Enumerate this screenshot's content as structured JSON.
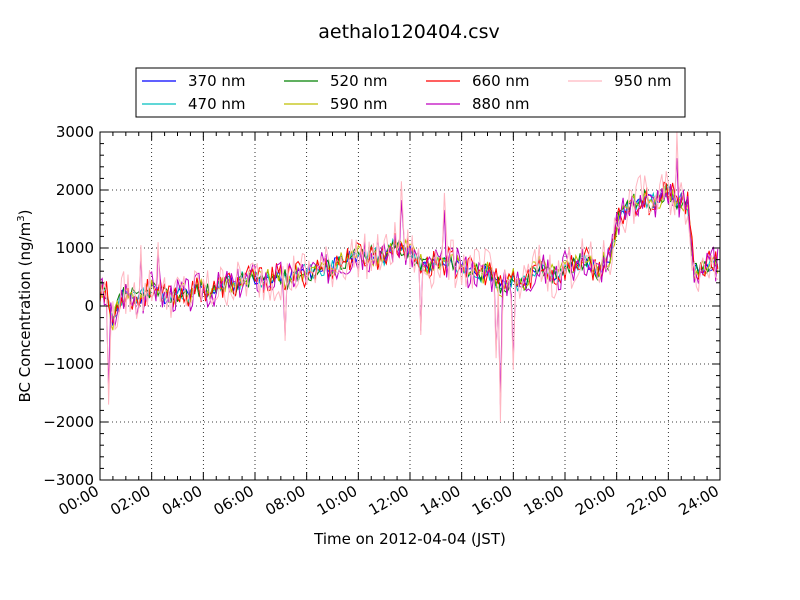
{
  "chart_data": {
    "type": "line",
    "title": "aethalo120404.csv",
    "xlabel": "Time on 2012-04-04 (JST)",
    "ylabel": "BC Concentration (ng/m",
    "ylabel_superscript": "3",
    "ylabel_suffix": ")",
    "x_unit": "hours",
    "xlim": [
      0,
      24
    ],
    "ylim": [
      -3000,
      3000
    ],
    "x_ticks": [
      0,
      2,
      4,
      6,
      8,
      10,
      12,
      14,
      16,
      18,
      20,
      22,
      24
    ],
    "x_tick_labels": [
      "00:00",
      "02:00",
      "04:00",
      "06:00",
      "08:00",
      "10:00",
      "12:00",
      "14:00",
      "16:00",
      "18:00",
      "20:00",
      "22:00",
      "24:00"
    ],
    "y_ticks": [
      -3000,
      -2000,
      -1000,
      0,
      1000,
      2000,
      3000
    ],
    "y_tick_labels": [
      "−3000",
      "−2000",
      "−1000",
      "0",
      "1000",
      "2000",
      "3000"
    ],
    "grid": true,
    "legend_position": "top",
    "anchors": {
      "x": [
        0,
        0.25,
        0.5,
        0.75,
        1,
        1.25,
        1.5,
        1.75,
        2,
        2.25,
        2.5,
        2.75,
        3,
        3.25,
        3.5,
        3.75,
        4,
        4.25,
        4.5,
        4.75,
        5,
        5.25,
        5.5,
        5.75,
        6,
        6.25,
        6.5,
        6.75,
        7,
        7.25,
        7.5,
        7.75,
        8,
        8.25,
        8.5,
        8.75,
        9,
        9.25,
        9.5,
        9.75,
        10,
        10.25,
        10.5,
        10.75,
        11,
        11.25,
        11.5,
        11.75,
        12,
        12.25,
        12.5,
        12.75,
        13,
        13.25,
        13.5,
        13.75,
        14,
        14.25,
        14.5,
        14.75,
        15,
        15.25,
        15.5,
        15.75,
        16,
        16.25,
        16.5,
        16.75,
        17,
        17.25,
        17.5,
        17.75,
        18,
        18.25,
        18.5,
        18.75,
        19,
        19.25,
        19.5,
        19.75,
        20,
        20.25,
        20.5,
        20.75,
        21,
        21.25,
        21.5,
        21.75,
        22,
        22.25,
        22.5,
        22.75,
        23,
        23.25,
        23.5,
        23.75
      ],
      "y": [
        300,
        200,
        -300,
        100,
        250,
        150,
        100,
        200,
        350,
        250,
        150,
        200,
        200,
        250,
        150,
        300,
        300,
        250,
        300,
        350,
        400,
        350,
        450,
        450,
        500,
        450,
        450,
        500,
        500,
        450,
        550,
        600,
        550,
        600,
        650,
        650,
        700,
        750,
        800,
        850,
        900,
        850,
        900,
        850,
        850,
        1000,
        1050,
        1000,
        950,
        800,
        700,
        650,
        800,
        750,
        800,
        700,
        750,
        600,
        650,
        550,
        600,
        500,
        300,
        400,
        500,
        350,
        400,
        600,
        700,
        600,
        550,
        500,
        650,
        700,
        750,
        800,
        700,
        600,
        750,
        800,
        1400,
        1600,
        1700,
        1800,
        1850,
        1800,
        1800,
        1900,
        2000,
        1850,
        1800,
        1750,
        600,
        650,
        700,
        750
      ]
    },
    "series": [
      {
        "name": "370 nm",
        "color": "#0000ff",
        "amp": 120,
        "seed": 11
      },
      {
        "name": "470 nm",
        "color": "#00bfbf",
        "amp": 150,
        "seed": 23
      },
      {
        "name": "520 nm",
        "color": "#008000",
        "amp": 170,
        "seed": 37
      },
      {
        "name": "590 nm",
        "color": "#bfbf00",
        "amp": 190,
        "seed": 41
      },
      {
        "name": "660 nm",
        "color": "#ff0000",
        "amp": 240,
        "seed": 53
      },
      {
        "name": "880 nm",
        "color": "#bf00bf",
        "amp": 300,
        "seed": 67
      },
      {
        "name": "950 nm",
        "color": "#ffb6c1",
        "amp": 420,
        "seed": 79
      }
    ],
    "spikes": [
      {
        "x": 0.35,
        "y": -1700
      },
      {
        "x": 0.55,
        "y": -400
      },
      {
        "x": 1.6,
        "y": 1050
      },
      {
        "x": 2.25,
        "y": 1100
      },
      {
        "x": 7.2,
        "y": -600
      },
      {
        "x": 11.7,
        "y": 2150
      },
      {
        "x": 12.4,
        "y": -500
      },
      {
        "x": 13.3,
        "y": 1950
      },
      {
        "x": 15.3,
        "y": -900
      },
      {
        "x": 15.5,
        "y": -2000
      },
      {
        "x": 16.0,
        "y": -1100
      },
      {
        "x": 20.9,
        "y": 2250
      },
      {
        "x": 22.35,
        "y": 3000
      },
      {
        "x": 23.85,
        "y": 500
      }
    ]
  }
}
